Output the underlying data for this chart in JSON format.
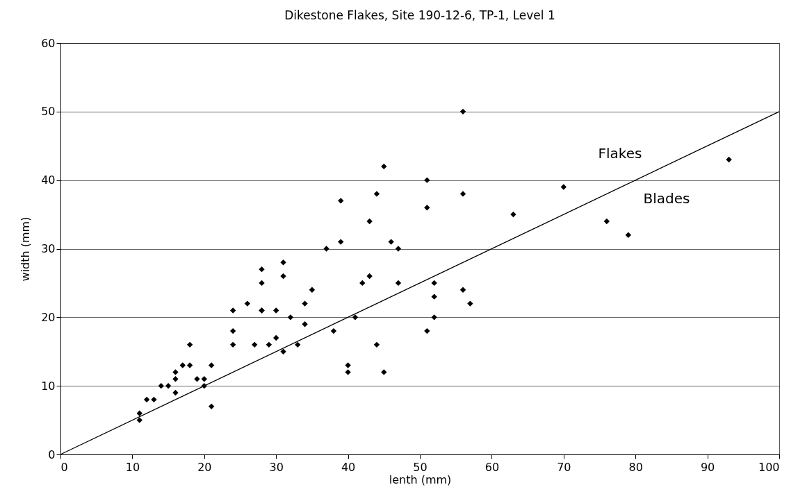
{
  "chart_data": {
    "type": "scatter",
    "title": "Dikestone Flakes, Site 190-12-6, TP-1, Level 1",
    "xlabel": "lenth (mm)",
    "ylabel": "width (mm)",
    "xlim": [
      0,
      100
    ],
    "xticks": [
      0,
      10,
      20,
      30,
      40,
      50,
      60,
      70,
      80,
      90,
      100
    ],
    "ylim": [
      0,
      60
    ],
    "yticks": [
      0,
      10,
      20,
      30,
      40,
      50,
      60
    ],
    "grid": "y",
    "marker": "diamond",
    "series": [
      {
        "color": "#000000",
        "x": [
          11,
          11,
          12,
          13,
          14,
          15,
          16,
          16,
          16,
          17,
          18,
          18,
          19,
          20,
          20,
          21,
          21,
          24,
          24,
          24,
          26,
          27,
          28,
          28,
          28,
          28,
          29,
          30,
          30,
          31,
          31,
          31,
          32,
          33,
          34,
          34,
          35,
          37,
          38,
          39,
          39,
          40,
          40,
          41,
          42,
          43,
          43,
          44,
          44,
          45,
          45,
          46,
          47,
          47,
          51,
          51,
          51,
          52,
          52,
          52,
          56,
          56,
          56,
          57,
          63,
          70,
          76,
          79,
          93
        ],
        "values": [
          6,
          5,
          8,
          8,
          10,
          10,
          12,
          11,
          9,
          13,
          13,
          16,
          11,
          11,
          10,
          13,
          7,
          16,
          18,
          21,
          22,
          16,
          21,
          25,
          27,
          21,
          16,
          21,
          17,
          28,
          26,
          15,
          20,
          16,
          22,
          19,
          24,
          30,
          18,
          37,
          31,
          13,
          12,
          20,
          25,
          26,
          34,
          38,
          16,
          42,
          12,
          31,
          30,
          25,
          40,
          36,
          18,
          25,
          23,
          20,
          50,
          38,
          24,
          22,
          35,
          39,
          34,
          32,
          43
        ]
      },
      {
        "type": "line",
        "color": "#000000",
        "marker": "none",
        "x": [
          0,
          100
        ],
        "values": [
          0,
          50
        ]
      }
    ],
    "annotations": [
      "Flakes",
      "Blades"
    ]
  }
}
